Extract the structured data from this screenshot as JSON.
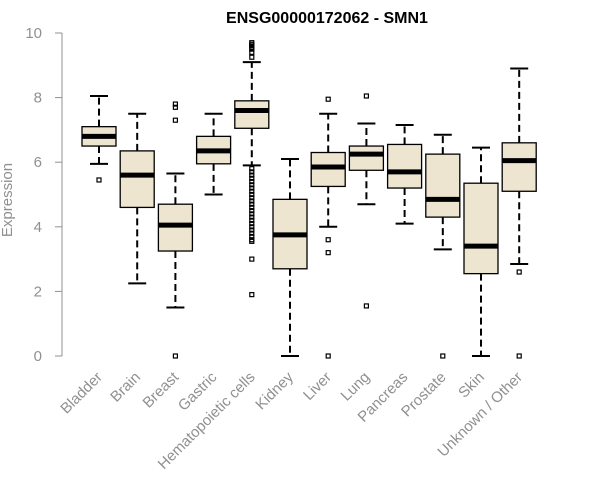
{
  "chart_data": {
    "type": "box",
    "title": "ENSG00000172062 - SMN1",
    "xlabel": "",
    "ylabel": "Expression",
    "ylim": [
      0,
      10
    ],
    "yticks": [
      0,
      2,
      4,
      6,
      8,
      10
    ],
    "box_fill": "#ede5cf",
    "categories": [
      "Bladder",
      "Brain",
      "Breast",
      "Gastric",
      "Hematopoietic cells",
      "Kidney",
      "Liver",
      "Lung",
      "Pancreas",
      "Prostate",
      "Skin",
      "Unknown / Other"
    ],
    "boxes": [
      {
        "min": 5.95,
        "q1": 6.5,
        "median": 6.8,
        "q3": 7.1,
        "max": 8.05,
        "outliers": [
          5.45
        ]
      },
      {
        "min": 2.25,
        "q1": 4.6,
        "median": 5.6,
        "q3": 6.35,
        "max": 7.5,
        "outliers": []
      },
      {
        "min": 1.5,
        "q1": 3.25,
        "median": 4.05,
        "q3": 4.7,
        "max": 5.65,
        "outliers": [
          7.8,
          7.7,
          7.3,
          0.0
        ]
      },
      {
        "min": 5.0,
        "q1": 5.95,
        "median": 6.35,
        "q3": 6.8,
        "max": 7.5,
        "outliers": []
      },
      {
        "min": 5.9,
        "q1": 7.05,
        "median": 7.6,
        "q3": 7.9,
        "max": 9.1,
        "outliers": [
          9.25,
          9.4,
          9.5,
          9.55,
          9.6,
          9.65,
          9.7,
          5.8,
          5.7,
          5.6,
          5.5,
          5.4,
          5.3,
          5.2,
          5.1,
          5.0,
          4.9,
          4.8,
          4.7,
          4.6,
          4.5,
          4.4,
          4.3,
          4.2,
          4.1,
          4.0,
          3.9,
          3.8,
          3.7,
          3.6,
          3.55,
          3.0,
          1.9
        ]
      },
      {
        "min": 0.0,
        "q1": 2.7,
        "median": 3.75,
        "q3": 4.85,
        "max": 6.1,
        "outliers": []
      },
      {
        "min": 4.0,
        "q1": 5.25,
        "median": 5.85,
        "q3": 6.3,
        "max": 7.5,
        "outliers": [
          7.95,
          3.6,
          3.2,
          0.0
        ]
      },
      {
        "min": 4.7,
        "q1": 5.75,
        "median": 6.25,
        "q3": 6.5,
        "max": 7.2,
        "outliers": [
          8.05,
          1.55
        ]
      },
      {
        "min": 4.1,
        "q1": 5.2,
        "median": 5.7,
        "q3": 6.55,
        "max": 7.15,
        "outliers": []
      },
      {
        "min": 3.3,
        "q1": 4.3,
        "median": 4.85,
        "q3": 6.25,
        "max": 6.85,
        "outliers": [
          0.0
        ]
      },
      {
        "min": 0.0,
        "q1": 2.55,
        "median": 3.4,
        "q3": 5.35,
        "max": 6.45,
        "outliers": []
      },
      {
        "min": 2.85,
        "q1": 5.1,
        "median": 6.05,
        "q3": 6.6,
        "max": 8.9,
        "outliers": [
          2.6,
          0.0
        ]
      }
    ]
  }
}
